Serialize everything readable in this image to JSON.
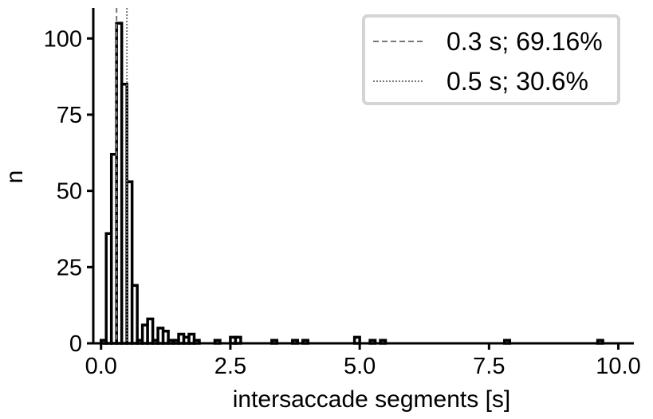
{
  "chart_data": {
    "type": "bar",
    "subtype": "histogram",
    "xlabel": "intersaccade segments [s]",
    "ylabel": "n",
    "xlim": [
      -0.15,
      10.3
    ],
    "ylim": [
      0,
      110
    ],
    "xticks": [
      0.0,
      2.5,
      5.0,
      7.5,
      10.0
    ],
    "xtick_labels": [
      "0.0",
      "2.5",
      "5.0",
      "7.5",
      "10.0"
    ],
    "yticks": [
      0,
      25,
      50,
      75,
      100
    ],
    "ytick_labels": [
      "0",
      "25",
      "50",
      "75",
      "100"
    ],
    "bin_width": 0.1,
    "bins": [
      {
        "x": 0.0,
        "n": 1
      },
      {
        "x": 0.1,
        "n": 36
      },
      {
        "x": 0.2,
        "n": 62
      },
      {
        "x": 0.3,
        "n": 105
      },
      {
        "x": 0.4,
        "n": 85
      },
      {
        "x": 0.5,
        "n": 53
      },
      {
        "x": 0.6,
        "n": 19
      },
      {
        "x": 0.7,
        "n": 1
      },
      {
        "x": 0.8,
        "n": 6
      },
      {
        "x": 0.9,
        "n": 8
      },
      {
        "x": 1.0,
        "n": 1
      },
      {
        "x": 1.1,
        "n": 5
      },
      {
        "x": 1.2,
        "n": 4
      },
      {
        "x": 1.3,
        "n": 1
      },
      {
        "x": 1.4,
        "n": 1
      },
      {
        "x": 1.5,
        "n": 3
      },
      {
        "x": 1.6,
        "n": 2
      },
      {
        "x": 1.7,
        "n": 3
      },
      {
        "x": 1.8,
        "n": 1
      },
      {
        "x": 2.2,
        "n": 1
      },
      {
        "x": 2.5,
        "n": 2
      },
      {
        "x": 2.6,
        "n": 2
      },
      {
        "x": 3.3,
        "n": 1
      },
      {
        "x": 3.7,
        "n": 1
      },
      {
        "x": 3.9,
        "n": 1
      },
      {
        "x": 4.9,
        "n": 2
      },
      {
        "x": 5.2,
        "n": 1
      },
      {
        "x": 5.4,
        "n": 1
      },
      {
        "x": 7.8,
        "n": 1
      },
      {
        "x": 9.6,
        "n": 1
      }
    ],
    "reference_lines": [
      {
        "x": 0.3,
        "style": "dashed",
        "label": "0.3 s; 69.16%"
      },
      {
        "x": 0.5,
        "style": "dotted",
        "label": "0.5 s; 30.6%"
      }
    ],
    "legend": {
      "placement": "top-right",
      "entries": [
        "0.3 s; 69.16%",
        "0.5 s; 30.6%"
      ]
    },
    "colors": {
      "bar_edge": "#000000",
      "bar_fill": "#ffffff",
      "ref_line": "#777777",
      "legend_border": "#d4d4d4"
    }
  }
}
